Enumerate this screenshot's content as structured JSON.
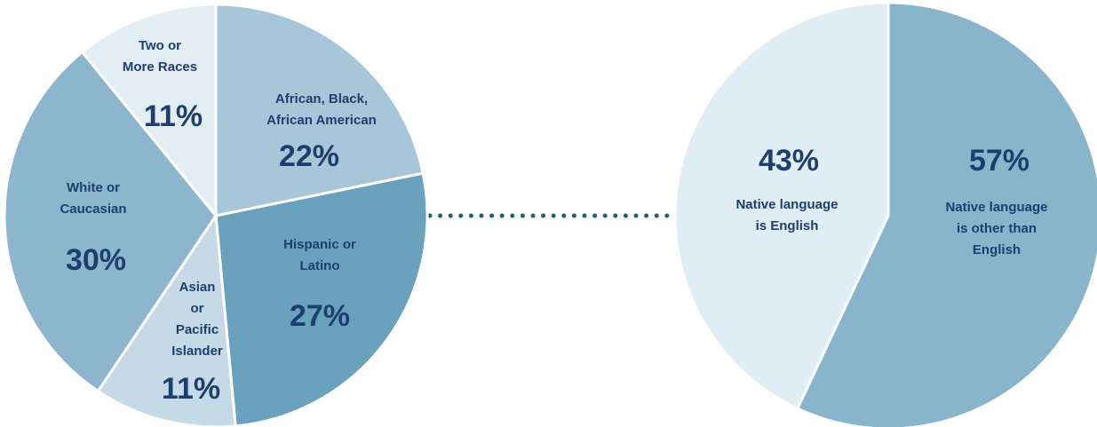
{
  "chart_data": [
    {
      "type": "pie",
      "categories": [
        "African, Black,\nAfrican American",
        "Hispanic or\nLatino",
        "Asian\nor\nPacific\nIslander",
        "White or\nCaucasian",
        "Two or\nMore Races"
      ],
      "values": [
        22,
        27,
        11,
        30,
        11
      ],
      "value_labels": [
        "22%",
        "27%",
        "11%",
        "30%",
        "11%"
      ],
      "colors": [
        "#a7c6da",
        "#6aa2be",
        "#c5dae6",
        "#8db6ce",
        "#e3edf4"
      ]
    },
    {
      "type": "pie",
      "categories": [
        "Native language\nis other than\nEnglish",
        "Native language\nis English"
      ],
      "values": [
        57,
        43
      ],
      "value_labels": [
        "57%",
        "43%"
      ],
      "colors": [
        "#89b5cc",
        "#e1edf4"
      ]
    }
  ]
}
